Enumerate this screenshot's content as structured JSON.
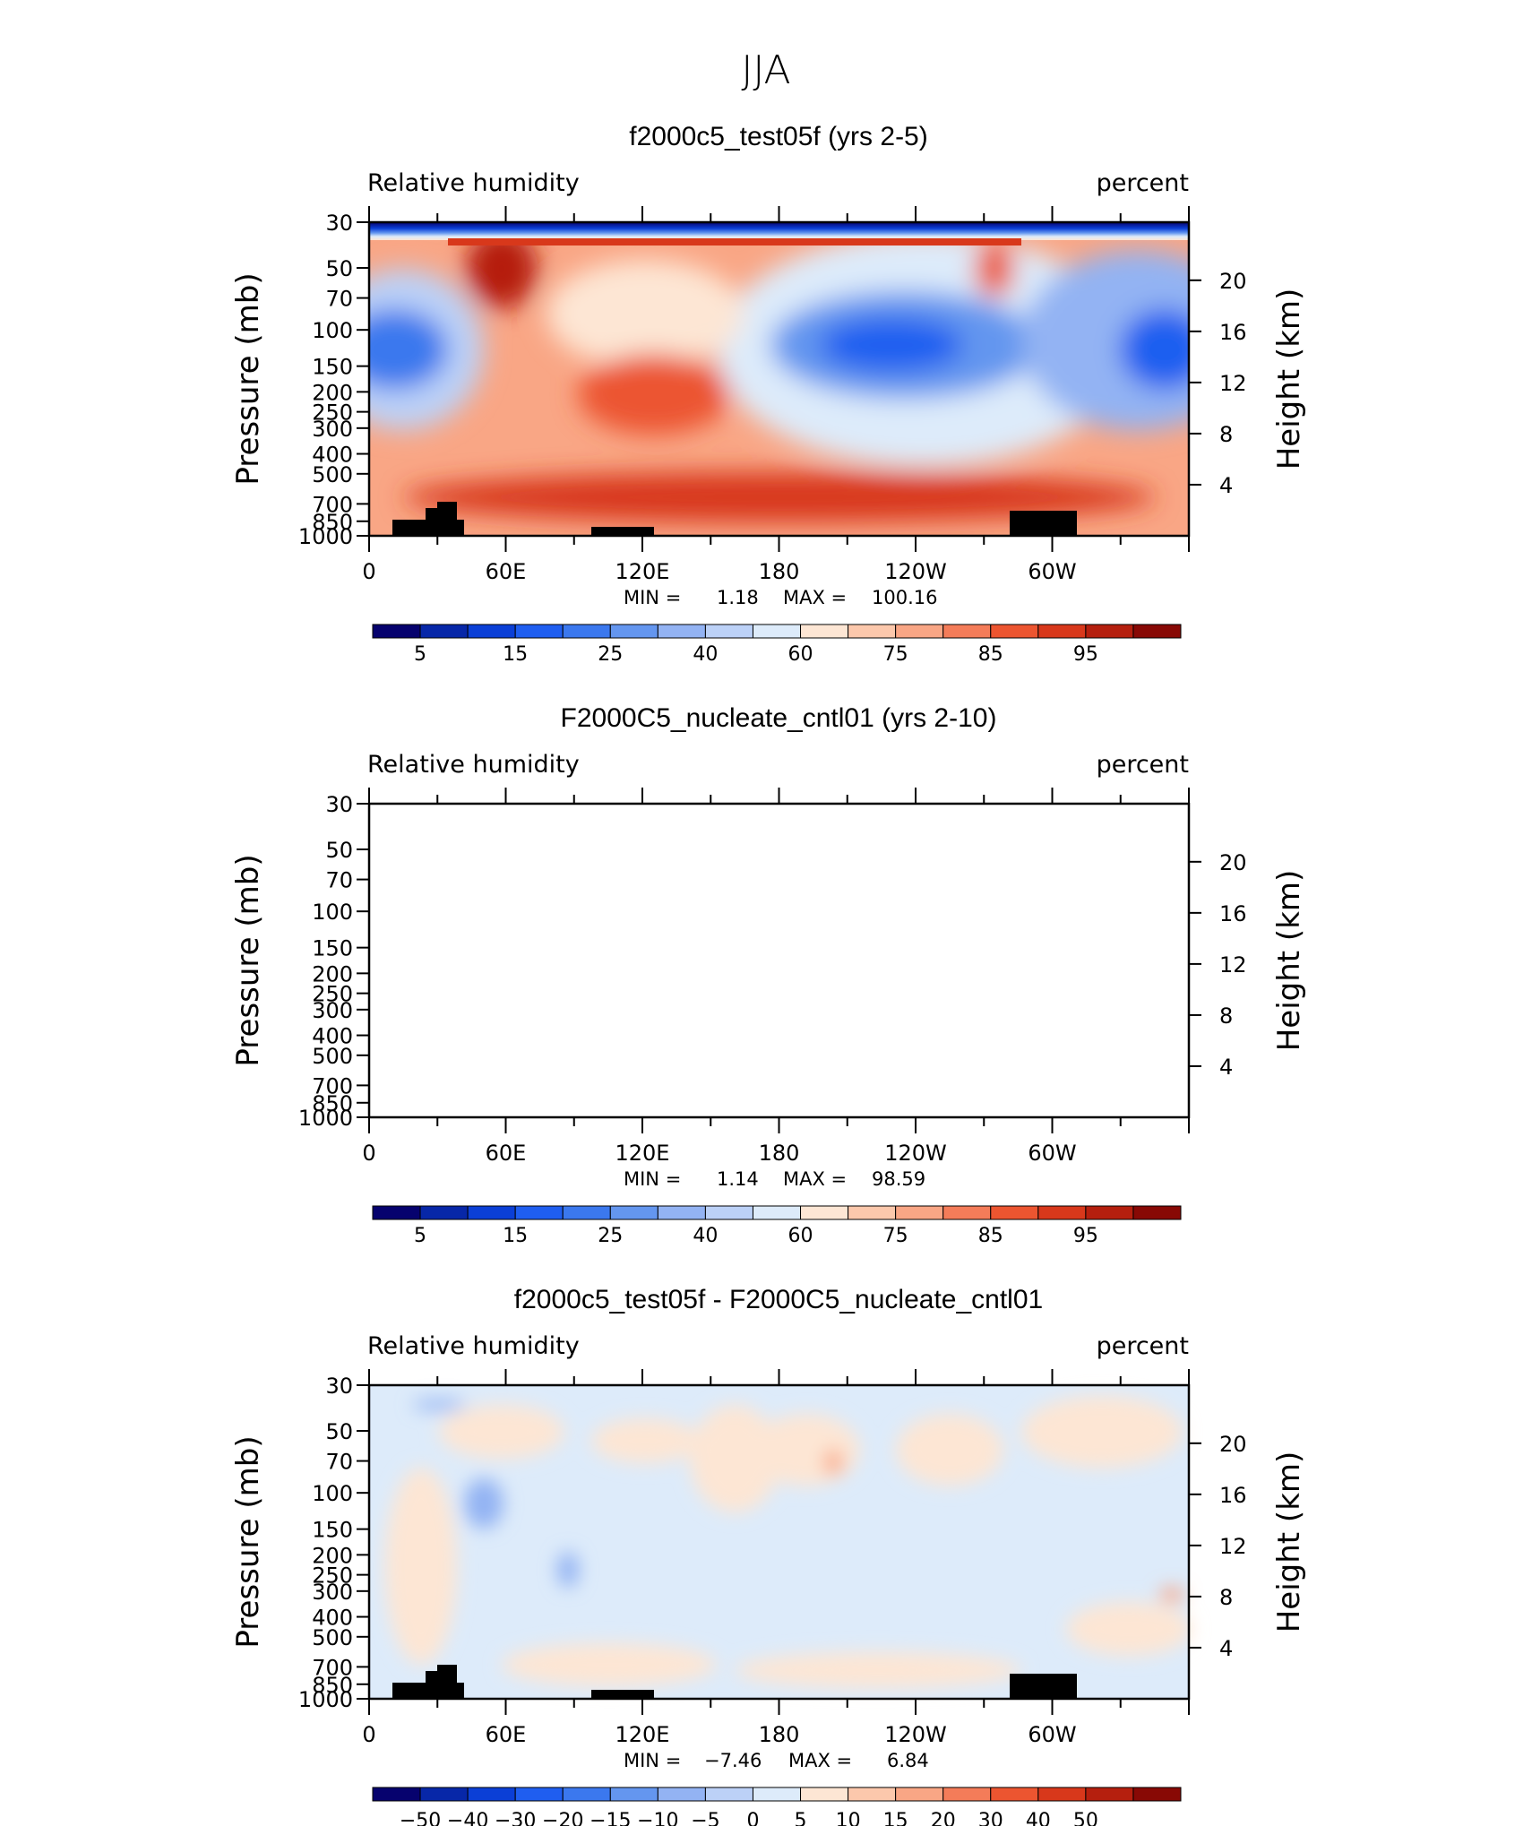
{
  "figure": {
    "title": "JJA"
  },
  "chart_data": [
    {
      "type": "heatmap",
      "title": "f2000c5_test05f (yrs 2-5)",
      "left_label": "Relative humidity",
      "right_label": "percent",
      "ylabel": "Pressure (mb)",
      "y2label": "Height (km)",
      "x_ticks": [
        "0",
        "60E",
        "120E",
        "180",
        "120W",
        "60W"
      ],
      "pressure_levels": [
        30,
        50,
        70,
        100,
        150,
        200,
        250,
        300,
        400,
        500,
        700,
        850,
        1000
      ],
      "pressure_labels": [
        "30",
        "50",
        "70",
        "100",
        "150",
        "200",
        "250",
        "300",
        "400",
        "500",
        "700",
        "850",
        "1000"
      ],
      "height_ticks": [
        "20",
        "16",
        "12",
        "8",
        "4"
      ],
      "min_label": "MIN =",
      "min_value": "1.18",
      "max_label": "MAX =",
      "max_value": "100.16",
      "ylim": [
        1000,
        30
      ],
      "colorbar_labels": [
        "5",
        "15",
        "25",
        "40",
        "60",
        "75",
        "85",
        "95"
      ]
    },
    {
      "type": "heatmap",
      "title": "F2000C5_nucleate_cntl01 (yrs 2-10)",
      "left_label": "Relative humidity",
      "right_label": "percent",
      "ylabel": "Pressure (mb)",
      "y2label": "Height (km)",
      "x_ticks": [
        "0",
        "60E",
        "120E",
        "180",
        "120W",
        "60W"
      ],
      "pressure_levels": [
        30,
        50,
        70,
        100,
        150,
        200,
        250,
        300,
        400,
        500,
        700,
        850,
        1000
      ],
      "pressure_labels": [
        "30",
        "50",
        "70",
        "100",
        "150",
        "200",
        "250",
        "300",
        "400",
        "500",
        "700",
        "850",
        "1000"
      ],
      "height_ticks": [
        "20",
        "16",
        "12",
        "8",
        "4"
      ],
      "min_label": "MIN =",
      "min_value": "1.14",
      "max_label": "MAX =",
      "max_value": "98.59",
      "ylim": [
        1000,
        30
      ],
      "colorbar_labels": [
        "5",
        "15",
        "25",
        "40",
        "60",
        "75",
        "85",
        "95"
      ]
    },
    {
      "type": "heatmap",
      "title": "f2000c5_test05f - F2000C5_nucleate_cntl01",
      "left_label": "Relative humidity",
      "right_label": "percent",
      "ylabel": "Pressure (mb)",
      "y2label": "Height (km)",
      "x_ticks": [
        "0",
        "60E",
        "120E",
        "180",
        "120W",
        "60W"
      ],
      "pressure_levels": [
        30,
        50,
        70,
        100,
        150,
        200,
        250,
        300,
        400,
        500,
        700,
        850,
        1000
      ],
      "pressure_labels": [
        "30",
        "50",
        "70",
        "100",
        "150",
        "200",
        "250",
        "300",
        "400",
        "500",
        "700",
        "850",
        "1000"
      ],
      "height_ticks": [
        "20",
        "16",
        "12",
        "8",
        "4"
      ],
      "min_label": "MIN =",
      "min_value": "−7.46",
      "max_label": "MAX =",
      "max_value": "6.84",
      "ylim": [
        1000,
        30
      ],
      "colorbar_labels": [
        "−50",
        "−40",
        "−30",
        "−20",
        "−15",
        "−10",
        "−5",
        "0",
        "5",
        "10",
        "15",
        "20",
        "30",
        "40",
        "50"
      ]
    }
  ],
  "colorbar_colors": [
    "#06026e",
    "#0727a8",
    "#0b3fd6",
    "#1f5ef0",
    "#3b78ee",
    "#6496ef",
    "#93b3f3",
    "#bcd1f7",
    "#ddebfa",
    "#fde6d4",
    "#fcc8ac",
    "#f9a685",
    "#f47c59",
    "#ec5530",
    "#d8381b",
    "#b51f0e",
    "#880905"
  ]
}
